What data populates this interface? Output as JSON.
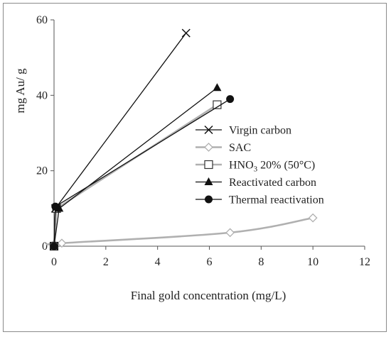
{
  "chart_data": {
    "type": "scatter",
    "xlabel": "Final gold concentration (mg/L)",
    "ylabel": "mg Au/ g",
    "xlim": [
      0,
      12
    ],
    "ylim": [
      0,
      60
    ],
    "xticks": [
      "0",
      "2",
      "4",
      "6",
      "8",
      "10",
      "12"
    ],
    "yticks": [
      "0",
      "20",
      "40",
      "60"
    ],
    "grid": false,
    "legend_position": "right",
    "series": [
      {
        "name": "Virgin carbon",
        "legend_label": "Virgin carbon",
        "marker": "x",
        "color": "#111111",
        "line": "straight",
        "points": [
          [
            0,
            0
          ],
          [
            0.05,
            10
          ],
          [
            5.1,
            56.5
          ]
        ]
      },
      {
        "name": "SAC",
        "legend_label": "SAC",
        "marker": "diamond-open",
        "color": "#b0b0b0",
        "line": "smooth",
        "points": [
          [
            0,
            0.5
          ],
          [
            0.3,
            0.8
          ],
          [
            6.8,
            3.6
          ],
          [
            10,
            7.5
          ]
        ]
      },
      {
        "name": "HNO3 20% (50°C)",
        "legend_label": "HNO",
        "legend_sub": "3",
        "legend_suffix": " 20% (50°C)",
        "marker": "square-open",
        "color": "#b0b0b0",
        "line": "straight",
        "points": [
          [
            0,
            0
          ],
          [
            0.1,
            10
          ],
          [
            6.3,
            37.5
          ]
        ]
      },
      {
        "name": "Reactivated carbon",
        "legend_label": "Reactivated carbon",
        "marker": "triangle",
        "color": "#111111",
        "line": "straight",
        "points": [
          [
            0,
            0
          ],
          [
            0.2,
            10
          ],
          [
            6.3,
            42
          ]
        ]
      },
      {
        "name": "Thermal reactivation",
        "legend_label": "Thermal reactivation",
        "marker": "circle",
        "color": "#111111",
        "line": "straight",
        "points": [
          [
            0,
            0
          ],
          [
            0.05,
            10.5
          ],
          [
            6.8,
            39
          ]
        ]
      }
    ]
  }
}
